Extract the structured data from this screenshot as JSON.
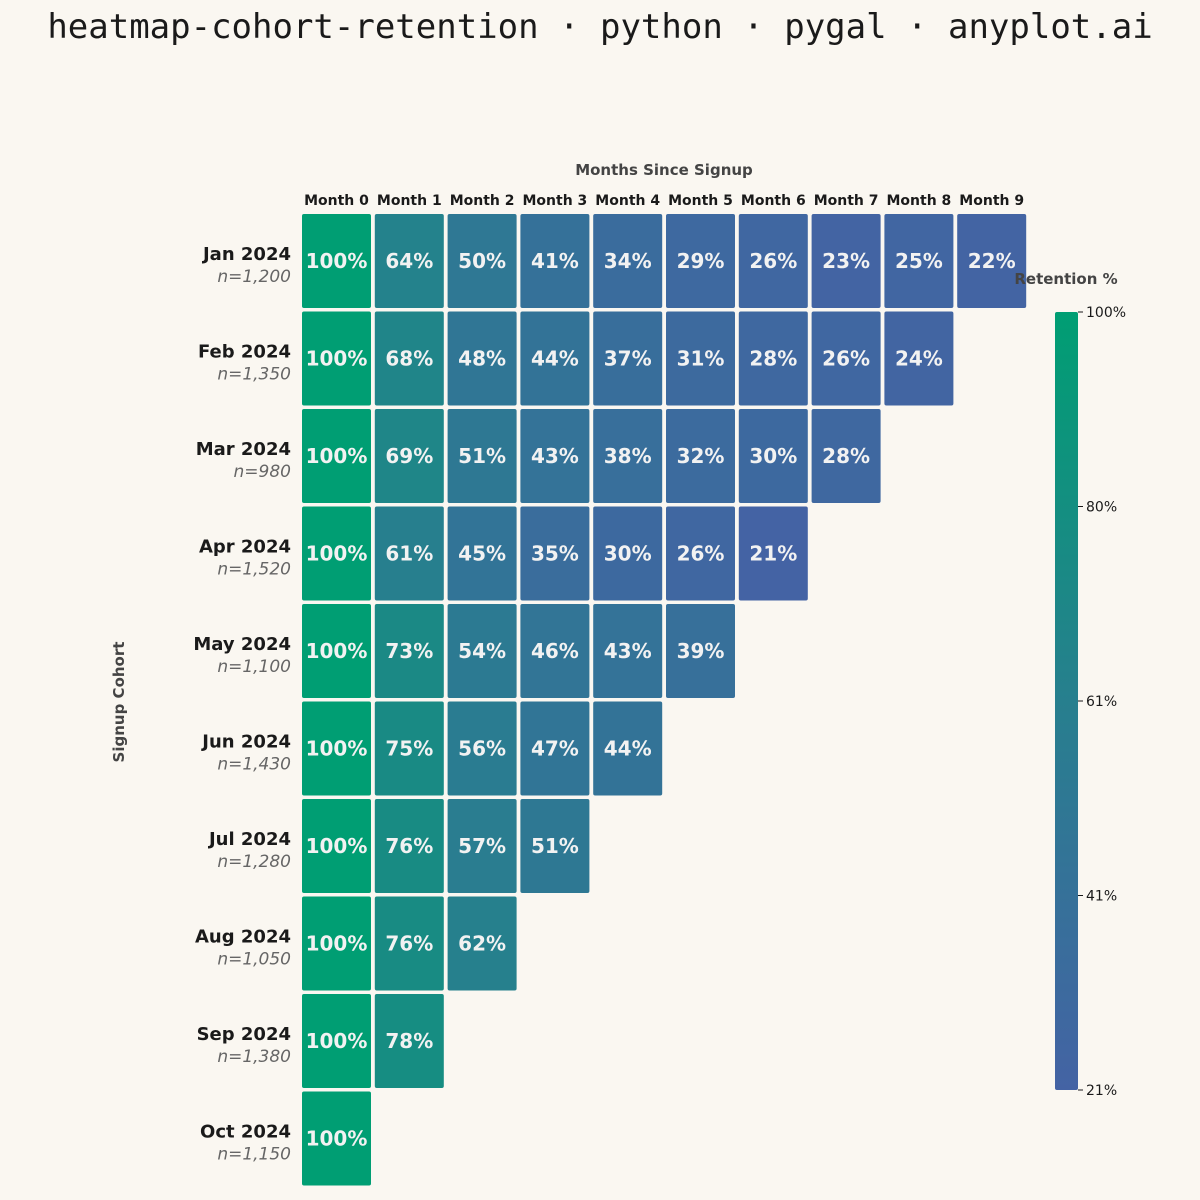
{
  "title": "heatmap-cohort-retention · python · pygal · anyplot.ai",
  "chart_data": {
    "type": "heatmap",
    "xlabel": "Months Since Signup",
    "ylabel": "Signup Cohort",
    "columns": [
      "Month 0",
      "Month 1",
      "Month 2",
      "Month 3",
      "Month 4",
      "Month 5",
      "Month 6",
      "Month 7",
      "Month 8",
      "Month 9"
    ],
    "cohorts": [
      {
        "label": "Jan 2024",
        "size": "n=1,200",
        "values": [
          100,
          64,
          50,
          41,
          34,
          29,
          26,
          23,
          25,
          22
        ]
      },
      {
        "label": "Feb 2024",
        "size": "n=1,350",
        "values": [
          100,
          68,
          48,
          44,
          37,
          31,
          28,
          26,
          24
        ]
      },
      {
        "label": "Mar 2024",
        "size": "n=980",
        "values": [
          100,
          69,
          51,
          43,
          38,
          32,
          30,
          28
        ]
      },
      {
        "label": "Apr 2024",
        "size": "n=1,520",
        "values": [
          100,
          61,
          45,
          35,
          30,
          26,
          21
        ]
      },
      {
        "label": "May 2024",
        "size": "n=1,100",
        "values": [
          100,
          73,
          54,
          46,
          43,
          39
        ]
      },
      {
        "label": "Jun 2024",
        "size": "n=1,430",
        "values": [
          100,
          75,
          56,
          47,
          44
        ]
      },
      {
        "label": "Jul 2024",
        "size": "n=1,280",
        "values": [
          100,
          76,
          57,
          51
        ]
      },
      {
        "label": "Aug 2024",
        "size": "n=1,050",
        "values": [
          100,
          76,
          62
        ]
      },
      {
        "label": "Sep 2024",
        "size": "n=1,380",
        "values": [
          100,
          78
        ]
      },
      {
        "label": "Oct 2024",
        "size": "n=1,150",
        "values": [
          100
        ]
      }
    ],
    "value_suffix": "%",
    "colorbar": {
      "title": "Retention %",
      "range": [
        21,
        100
      ],
      "ticks": [
        "100%",
        "80%",
        "61%",
        "41%",
        "21%"
      ],
      "color_low": "#4463a4",
      "color_mid": "#277f8e",
      "color_high": "#009e73"
    }
  }
}
